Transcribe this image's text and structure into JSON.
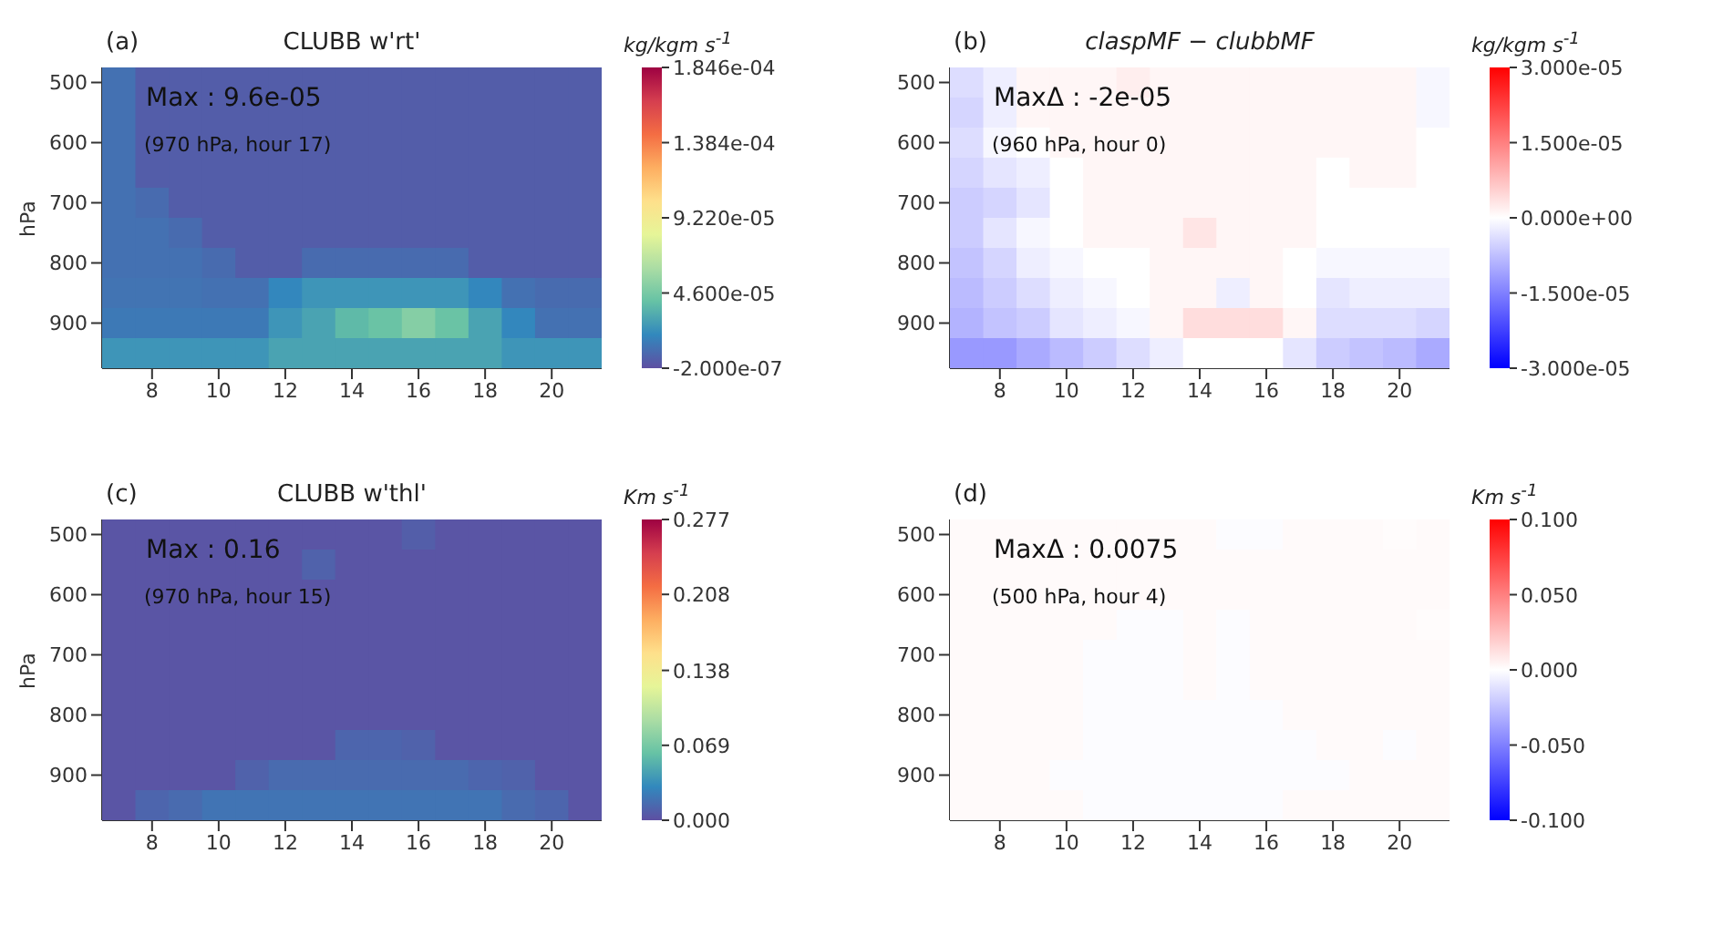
{
  "chart_data": [
    {
      "type": "heatmap",
      "title": "CLUBB w'rt'",
      "ylabel": "hPa",
      "clabel": "kg/kgm s$^{-1}$",
      "annotations": [
        "(a)",
        "Max :  9.6e-05",
        "(970 hPa, hour 17)"
      ],
      "categories": [
        null,
        "8",
        null,
        "10",
        null,
        "12",
        null,
        "14",
        null,
        "16",
        null,
        "18",
        null,
        "20",
        null
      ],
      "y_categories": [
        "500",
        null,
        "600",
        null,
        "700",
        null,
        "800",
        null,
        "900",
        null
      ],
      "cells": [
        [
          1.2e-05,
          5e-06,
          5e-06,
          5e-06,
          5e-06,
          5e-06,
          5e-06,
          5e-06,
          5e-06,
          5e-06,
          5e-06,
          5e-06,
          5e-06,
          5e-06,
          5e-06
        ],
        [
          1.2e-05,
          5e-06,
          5e-06,
          5e-06,
          5e-06,
          5e-06,
          5e-06,
          5e-06,
          5e-06,
          5e-06,
          5e-06,
          5e-06,
          5e-06,
          5e-06,
          5e-06
        ],
        [
          1.2e-05,
          5e-06,
          5e-06,
          5e-06,
          5e-06,
          5e-06,
          5e-06,
          5e-06,
          5e-06,
          5e-06,
          5e-06,
          5e-06,
          5e-06,
          5e-06,
          5e-06
        ],
        [
          1.2e-05,
          5e-06,
          5e-06,
          5e-06,
          5e-06,
          5e-06,
          5e-06,
          5e-06,
          5e-06,
          5e-06,
          5e-06,
          5e-06,
          5e-06,
          5e-06,
          5e-06
        ],
        [
          1.2e-05,
          1e-05,
          5e-06,
          5e-06,
          5e-06,
          5e-06,
          5e-06,
          5e-06,
          5e-06,
          5e-06,
          5e-06,
          5e-06,
          5e-06,
          5e-06,
          5e-06
        ],
        [
          1.2e-05,
          1.2e-05,
          1e-05,
          5e-06,
          5e-06,
          5e-06,
          5e-06,
          5e-06,
          5e-06,
          5e-06,
          5e-06,
          5e-06,
          5e-06,
          5e-06,
          5e-06
        ],
        [
          1.2e-05,
          1.2e-05,
          1.2e-05,
          1e-05,
          5e-06,
          5e-06,
          1e-05,
          1e-05,
          1e-05,
          1e-05,
          1e-05,
          5e-06,
          5e-06,
          5e-06,
          5e-06
        ],
        [
          1.3e-05,
          1.3e-05,
          1.3e-05,
          1.2e-05,
          1.2e-05,
          2e-05,
          2.5e-05,
          2.5e-05,
          2.5e-05,
          2.5e-05,
          2.5e-05,
          2e-05,
          1.2e-05,
          1e-05,
          1e-05
        ],
        [
          1.5e-05,
          1.5e-05,
          1.5e-05,
          1.5e-05,
          1.5e-05,
          2.5e-05,
          3e-05,
          3.8e-05,
          4.2e-05,
          5e-05,
          4.2e-05,
          3e-05,
          2e-05,
          1.2e-05,
          1.2e-05
        ],
        [
          2.5e-05,
          2.5e-05,
          2.5e-05,
          2.5e-05,
          2.5e-05,
          3e-05,
          3e-05,
          3e-05,
          3e-05,
          3e-05,
          3e-05,
          3e-05,
          2.5e-05,
          2.5e-05,
          2.5e-05
        ]
      ],
      "clim": [
        -2e-07,
        0.0001846
      ],
      "cticks": [
        {
          "value": -2e-07,
          "label": "-2.000e-07"
        },
        {
          "value": 4.6e-05,
          "label": "4.600e-05"
        },
        {
          "value": 9.22e-05,
          "label": "9.220e-05"
        },
        {
          "value": 0.0001384,
          "label": "1.384e-04"
        },
        {
          "value": 0.0001846,
          "label": "1.846e-04"
        }
      ],
      "colors": [
        "#5e4fa2",
        "#3288bd",
        "#66c2a5",
        "#abdda4",
        "#e6f598",
        "#fee08b",
        "#fdae61",
        "#f46d43",
        "#d53e4f",
        "#9e0142"
      ]
    },
    {
      "type": "heatmap",
      "title": "claspMF − clubbMF",
      "clabel": "kg/kgm s$^{-1}$",
      "annotations": [
        "(b)",
        "MaxΔ :  -2e-05",
        "(960 hPa, hour 0)"
      ],
      "categories": [
        null,
        "8",
        null,
        "10",
        null,
        "12",
        null,
        "14",
        null,
        "16",
        null,
        "18",
        null,
        "20",
        null
      ],
      "y_categories": [
        "500",
        null,
        "600",
        null,
        "700",
        null,
        "800",
        null,
        "900",
        null
      ],
      "cells": [
        [
          -4e-06,
          -2e-06,
          1e-06,
          1e-06,
          1e-06,
          2e-06,
          1e-06,
          1e-06,
          1e-06,
          1e-06,
          1e-06,
          1e-06,
          1e-06,
          1e-06,
          -1e-06
        ],
        [
          -5e-06,
          -2e-06,
          1e-06,
          1e-06,
          1e-06,
          1e-06,
          1e-06,
          1e-06,
          1e-06,
          1e-06,
          1e-06,
          1e-06,
          1e-06,
          1e-06,
          -1e-06
        ],
        [
          -4e-06,
          -1e-06,
          0,
          1e-06,
          1e-06,
          1e-06,
          1e-06,
          1e-06,
          1e-06,
          1e-06,
          1e-06,
          1e-06,
          1e-06,
          1e-06,
          0
        ],
        [
          -5e-06,
          -3e-06,
          -2e-06,
          0,
          1e-06,
          1e-06,
          1e-06,
          1e-06,
          1e-06,
          1e-06,
          1e-06,
          0,
          1e-06,
          1e-06,
          0
        ],
        [
          -6e-06,
          -5e-06,
          -3e-06,
          0,
          1e-06,
          1e-06,
          1e-06,
          1e-06,
          1e-06,
          1e-06,
          1e-06,
          0,
          0,
          0,
          0
        ],
        [
          -6e-06,
          -3e-06,
          -1e-06,
          0,
          1e-06,
          1e-06,
          1e-06,
          3e-06,
          1e-06,
          1e-06,
          1e-06,
          0,
          0,
          0,
          0
        ],
        [
          -7e-06,
          -5e-06,
          -2e-06,
          -1e-06,
          0,
          0,
          1e-06,
          1e-06,
          1e-06,
          1e-06,
          0,
          -1e-06,
          -1e-06,
          -1e-06,
          -1e-06
        ],
        [
          -8e-06,
          -6e-06,
          -4e-06,
          -2e-06,
          -1e-06,
          0,
          1e-06,
          1e-06,
          -2e-06,
          1e-06,
          0,
          -3e-06,
          -2e-06,
          -2e-06,
          -2e-06
        ],
        [
          -9e-06,
          -7e-06,
          -6e-06,
          -3e-06,
          -2e-06,
          -1e-06,
          1e-06,
          4e-06,
          4e-06,
          4e-06,
          1e-06,
          -4e-06,
          -4e-06,
          -4e-06,
          -5e-06
        ],
        [
          -1.2e-05,
          -1.2e-05,
          -1e-05,
          -8e-06,
          -6e-06,
          -4e-06,
          -2e-06,
          0,
          0,
          0,
          -3e-06,
          -6e-06,
          -7e-06,
          -8e-06,
          -1e-05
        ]
      ],
      "clim": [
        -3e-05,
        3e-05
      ],
      "cticks": [
        {
          "value": -3e-05,
          "label": "-3.000e-05"
        },
        {
          "value": -1.5e-05,
          "label": "-1.500e-05"
        },
        {
          "value": 0,
          "label": "0.000e+00"
        },
        {
          "value": 1.5e-05,
          "label": "1.500e-05"
        },
        {
          "value": 3e-05,
          "label": "3.000e-05"
        }
      ],
      "colors": [
        "#0000ff",
        "#ffffff",
        "#ff0000"
      ]
    },
    {
      "type": "heatmap",
      "title": "CLUBB w'thl'",
      "ylabel": "hPa",
      "clabel": "Km s$^{-1}$",
      "annotations": [
        "(c)",
        "Max :  0.16",
        "(970 hPa, hour 15)"
      ],
      "categories": [
        null,
        "8",
        null,
        "10",
        null,
        "12",
        null,
        "14",
        null,
        "16",
        null,
        "18",
        null,
        "20",
        null
      ],
      "y_categories": [
        "500",
        null,
        "600",
        null,
        "700",
        null,
        "800",
        null,
        "900",
        null
      ],
      "cells": [
        [
          0.003,
          0.003,
          0.003,
          0.003,
          0.003,
          0.003,
          0.003,
          0.003,
          0.003,
          0.008,
          0.003,
          0.003,
          0.003,
          0.003,
          0.003
        ],
        [
          0.003,
          0.003,
          0.003,
          0.003,
          0.003,
          0.003,
          0.01,
          0.003,
          0.003,
          0.003,
          0.003,
          0.003,
          0.003,
          0.003,
          0.003
        ],
        [
          0.003,
          0.003,
          0.003,
          0.003,
          0.003,
          0.003,
          0.003,
          0.003,
          0.003,
          0.003,
          0.003,
          0.003,
          0.003,
          0.003,
          0.003
        ],
        [
          0.003,
          0.003,
          0.003,
          0.003,
          0.003,
          0.003,
          0.003,
          0.003,
          0.003,
          0.003,
          0.003,
          0.003,
          0.003,
          0.003,
          0.003
        ],
        [
          0.003,
          0.003,
          0.003,
          0.003,
          0.003,
          0.003,
          0.003,
          0.003,
          0.003,
          0.003,
          0.003,
          0.003,
          0.003,
          0.003,
          0.003
        ],
        [
          0.003,
          0.003,
          0.003,
          0.003,
          0.003,
          0.003,
          0.003,
          0.003,
          0.003,
          0.003,
          0.003,
          0.003,
          0.003,
          0.003,
          0.003
        ],
        [
          0.003,
          0.003,
          0.003,
          0.003,
          0.003,
          0.003,
          0.003,
          0.003,
          0.003,
          0.003,
          0.003,
          0.003,
          0.003,
          0.003,
          0.003
        ],
        [
          0.003,
          0.003,
          0.003,
          0.003,
          0.003,
          0.003,
          0.003,
          0.012,
          0.012,
          0.01,
          0.003,
          0.003,
          0.003,
          0.003,
          0.003
        ],
        [
          0.003,
          0.003,
          0.003,
          0.003,
          0.01,
          0.015,
          0.015,
          0.015,
          0.015,
          0.015,
          0.015,
          0.012,
          0.01,
          0.003,
          0.003
        ],
        [
          0.003,
          0.012,
          0.015,
          0.02,
          0.02,
          0.02,
          0.02,
          0.02,
          0.02,
          0.02,
          0.02,
          0.02,
          0.015,
          0.012,
          0.003
        ]
      ],
      "clim": [
        0,
        0.277
      ],
      "cticks": [
        {
          "value": 0,
          "label": "0.000"
        },
        {
          "value": 0.069,
          "label": "0.069"
        },
        {
          "value": 0.138,
          "label": "0.138"
        },
        {
          "value": 0.208,
          "label": "0.208"
        },
        {
          "value": 0.277,
          "label": "0.277"
        }
      ],
      "colors": [
        "#5e4fa2",
        "#3288bd",
        "#66c2a5",
        "#abdda4",
        "#e6f598",
        "#fee08b",
        "#fdae61",
        "#f46d43",
        "#d53e4f",
        "#9e0142"
      ]
    },
    {
      "type": "heatmap",
      "clabel": "Km s$^{-1}$",
      "annotations": [
        "(d)",
        "MaxΔ :  0.0075",
        "(500 hPa, hour 4)"
      ],
      "categories": [
        null,
        "8",
        null,
        "10",
        null,
        "12",
        null,
        "14",
        null,
        "16",
        null,
        "18",
        null,
        "20",
        null
      ],
      "y_categories": [
        "500",
        null,
        "600",
        null,
        "700",
        null,
        "800",
        null,
        "900",
        null
      ],
      "cells": [
        [
          0.002,
          0.002,
          0.002,
          0.002,
          0.002,
          0.002,
          0.002,
          0.002,
          -0.001,
          -0.001,
          0.002,
          0.002,
          0.002,
          0.001,
          0.002
        ],
        [
          0.002,
          0.002,
          0.002,
          0.002,
          0.002,
          0.002,
          0.002,
          0.002,
          0.002,
          0.002,
          0.002,
          0.002,
          0.002,
          0.002,
          0.002
        ],
        [
          0.002,
          0.002,
          0.002,
          0.002,
          0.002,
          0.002,
          0.002,
          0.002,
          0.002,
          0.002,
          0.002,
          0.002,
          0.002,
          0.002,
          0.002
        ],
        [
          0.002,
          0.002,
          0.002,
          0.002,
          0.002,
          -0.001,
          -0.001,
          0.002,
          -0.001,
          0.002,
          0.002,
          0.002,
          0.002,
          0.002,
          0.001
        ],
        [
          0.002,
          0.002,
          0.002,
          0.002,
          -0.001,
          -0.001,
          -0.001,
          0.002,
          -0.001,
          0.002,
          0.002,
          0.002,
          0.002,
          0.002,
          0.002
        ],
        [
          0.002,
          0.002,
          0.002,
          0.002,
          -0.001,
          -0.001,
          -0.001,
          0.002,
          -0.001,
          0.002,
          0.002,
          0.002,
          0.002,
          0.002,
          0.002
        ],
        [
          0.002,
          0.002,
          0.002,
          0.002,
          -0.001,
          -0.001,
          -0.001,
          -0.001,
          -0.001,
          -0.001,
          0.002,
          0.002,
          0.002,
          0.002,
          0.002
        ],
        [
          0.002,
          0.002,
          0.002,
          0.002,
          -0.001,
          -0.001,
          -0.001,
          -0.001,
          -0.001,
          -0.001,
          -0.001,
          0.002,
          0.002,
          -0.001,
          0.002
        ],
        [
          0.002,
          0.002,
          0.002,
          -0.001,
          -0.001,
          -0.001,
          -0.001,
          -0.001,
          -0.001,
          -0.001,
          -0.001,
          -0.001,
          0.002,
          0.002,
          0.002
        ],
        [
          0.002,
          0.002,
          0.002,
          0.002,
          -0.001,
          -0.001,
          -0.001,
          -0.001,
          -0.001,
          -0.001,
          0.002,
          0.002,
          0.002,
          0.002,
          0.002
        ]
      ],
      "clim": [
        -0.1,
        0.1
      ],
      "cticks": [
        {
          "value": -0.1,
          "label": "-0.100"
        },
        {
          "value": -0.05,
          "label": "-0.050"
        },
        {
          "value": 0,
          "label": "0.000"
        },
        {
          "value": 0.05,
          "label": "0.050"
        },
        {
          "value": 0.1,
          "label": "0.100"
        }
      ],
      "colors": [
        "#0000ff",
        "#ffffff",
        "#ff0000"
      ]
    }
  ]
}
